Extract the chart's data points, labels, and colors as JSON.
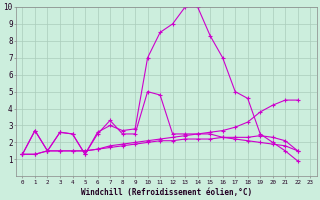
{
  "xlabel": "Windchill (Refroidissement éolien,°C)",
  "bg_color": "#cceedd",
  "grid_color": "#aaccbb",
  "line_color": "#cc00cc",
  "xlim": [
    -0.5,
    23.5
  ],
  "ylim": [
    0,
    10
  ],
  "xticks": [
    0,
    1,
    2,
    3,
    4,
    5,
    6,
    7,
    8,
    9,
    10,
    11,
    12,
    13,
    14,
    15,
    16,
    17,
    18,
    19,
    20,
    21,
    22,
    23
  ],
  "yticks": [
    1,
    2,
    3,
    4,
    5,
    6,
    7,
    8,
    9,
    10
  ],
  "series": [
    {
      "x": [
        0,
        1,
        2,
        3,
        4,
        5,
        6,
        7,
        8,
        9,
        10,
        11,
        12,
        13,
        14,
        15,
        16,
        17,
        18,
        19,
        20,
        21,
        22
      ],
      "y": [
        1.3,
        2.7,
        1.5,
        2.6,
        2.5,
        1.3,
        2.6,
        3.0,
        2.7,
        2.8,
        7.0,
        8.5,
        9.0,
        10.0,
        10.0,
        8.3,
        7.0,
        5.0,
        4.6,
        2.5,
        2.0,
        1.5,
        0.9
      ]
    },
    {
      "x": [
        0,
        1,
        2,
        3,
        4,
        5,
        6,
        7,
        8,
        9,
        10,
        11,
        12,
        13,
        14,
        15,
        16,
        17,
        18,
        19,
        20,
        21,
        22
      ],
      "y": [
        1.3,
        2.7,
        1.5,
        2.6,
        2.5,
        1.3,
        2.5,
        3.3,
        2.5,
        2.5,
        5.0,
        4.8,
        2.5,
        2.5,
        2.5,
        2.5,
        2.3,
        2.2,
        2.1,
        2.0,
        1.9,
        1.8,
        1.5
      ]
    },
    {
      "x": [
        0,
        1,
        2,
        3,
        4,
        5,
        6,
        7,
        8,
        9,
        10,
        11,
        12,
        13,
        14,
        15,
        16,
        17,
        18,
        19,
        20,
        21,
        22
      ],
      "y": [
        1.3,
        1.3,
        1.5,
        1.5,
        1.5,
        1.5,
        1.6,
        1.8,
        1.9,
        2.0,
        2.1,
        2.2,
        2.3,
        2.4,
        2.5,
        2.6,
        2.7,
        2.9,
        3.2,
        3.8,
        4.2,
        4.5,
        4.5
      ]
    },
    {
      "x": [
        0,
        1,
        2,
        3,
        4,
        5,
        6,
        7,
        8,
        9,
        10,
        11,
        12,
        13,
        14,
        15,
        16,
        17,
        18,
        19,
        20,
        21,
        22
      ],
      "y": [
        1.3,
        1.3,
        1.5,
        1.5,
        1.5,
        1.5,
        1.6,
        1.7,
        1.8,
        1.9,
        2.0,
        2.1,
        2.1,
        2.2,
        2.2,
        2.2,
        2.3,
        2.3,
        2.3,
        2.4,
        2.3,
        2.1,
        1.5
      ]
    }
  ]
}
